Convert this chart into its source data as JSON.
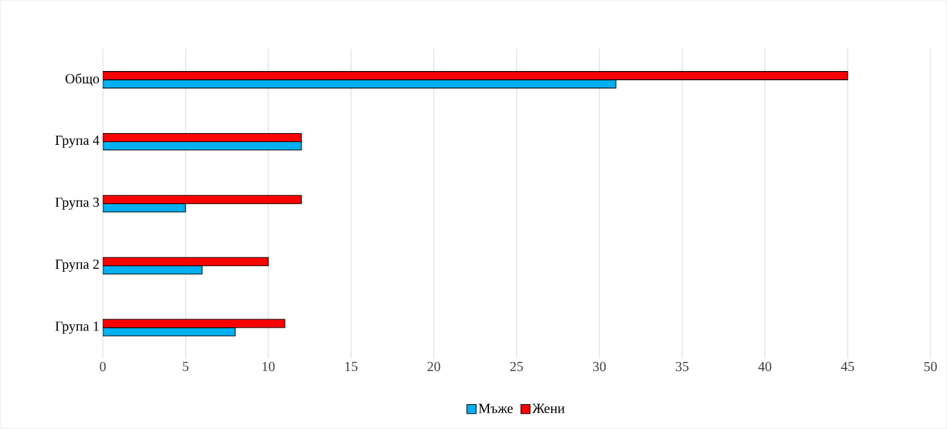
{
  "chart_data": {
    "type": "bar",
    "orientation": "horizontal",
    "categories": [
      "Общо",
      "Група 4",
      "Група 3",
      "Група 2",
      "Група 1"
    ],
    "series": [
      {
        "name": "Мъже",
        "color": "#00b0f0",
        "values": [
          31,
          12,
          5,
          6,
          8
        ]
      },
      {
        "name": "Жени",
        "color": "#ff0000",
        "values": [
          45,
          12,
          12,
          10,
          11
        ]
      }
    ],
    "xlim": [
      0,
      50
    ],
    "xticks": [
      0,
      5,
      10,
      15,
      20,
      25,
      30,
      35,
      40,
      45,
      50
    ],
    "grid": "x",
    "legend": "bottom"
  }
}
